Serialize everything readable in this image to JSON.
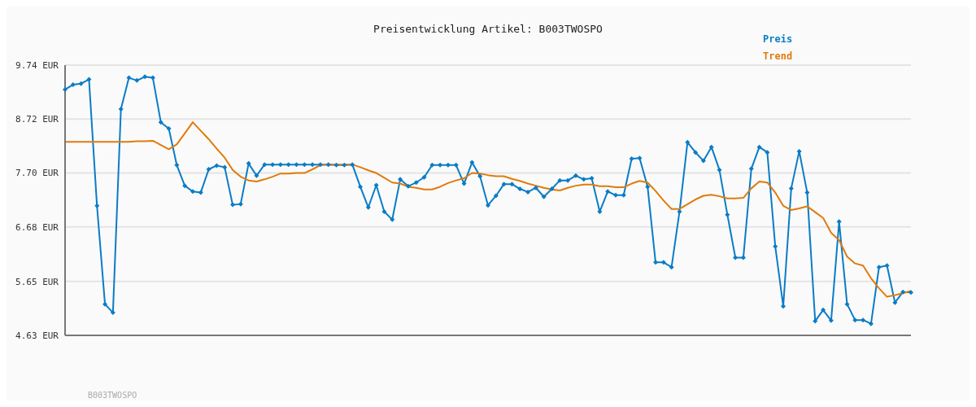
{
  "chart_data": {
    "type": "line",
    "title": "Preisentwicklung Artikel: B003TWOSPO",
    "categories": [
      null,
      null,
      null,
      null,
      null,
      null,
      null,
      null,
      null,
      null,
      null,
      null,
      null,
      null,
      null,
      null,
      null,
      null,
      null,
      null,
      null,
      null,
      null,
      null,
      null,
      null,
      null,
      null,
      null,
      null,
      null,
      null,
      null,
      null,
      null,
      null,
      null,
      null,
      null,
      null,
      null,
      null,
      null,
      null,
      null,
      null,
      null,
      null,
      null,
      null,
      null,
      null,
      null,
      null,
      null,
      null,
      null,
      null,
      null,
      null,
      null,
      null,
      null,
      null,
      null,
      null,
      null,
      null,
      null,
      null,
      null,
      null,
      null,
      null,
      null,
      null,
      null,
      null,
      null,
      null,
      null,
      null,
      null,
      null,
      null,
      null,
      null,
      null,
      null,
      null,
      null,
      null,
      null,
      null,
      null,
      null,
      null,
      null,
      null,
      null,
      null,
      null,
      null,
      null,
      null,
      null,
      null
    ],
    "series": [
      {
        "name": "Preis",
        "color": "#0a7cc6",
        "marker": "diamond",
        "values": [
          9.28,
          9.37,
          9.39,
          9.47,
          7.08,
          5.22,
          5.06,
          8.91,
          9.5,
          9.45,
          9.52,
          9.5,
          8.66,
          8.54,
          7.85,
          7.46,
          7.35,
          7.33,
          7.77,
          7.84,
          7.81,
          7.1,
          7.11,
          7.88,
          7.65,
          7.86,
          7.86,
          7.86,
          7.86,
          7.86,
          7.86,
          7.86,
          7.86,
          7.86,
          7.85,
          7.85,
          7.86,
          7.44,
          7.05,
          7.47,
          6.97,
          6.82,
          7.58,
          7.45,
          7.52,
          7.62,
          7.85,
          7.85,
          7.85,
          7.85,
          7.5,
          7.9,
          7.64,
          7.09,
          7.27,
          7.49,
          7.49,
          7.4,
          7.34,
          7.42,
          7.25,
          7.4,
          7.56,
          7.56,
          7.65,
          7.58,
          7.6,
          6.97,
          7.35,
          7.28,
          7.28,
          7.97,
          7.98,
          7.44,
          6.01,
          6.01,
          5.92,
          6.97,
          8.28,
          8.09,
          7.93,
          8.19,
          7.76,
          6.91,
          6.1,
          6.1,
          7.78,
          8.19,
          8.09,
          6.31,
          5.18,
          7.41,
          8.11,
          7.33,
          4.9,
          5.11,
          4.91,
          6.78,
          5.22,
          4.92,
          4.92,
          4.85,
          5.92,
          5.95,
          5.25,
          5.45,
          5.44
        ]
      },
      {
        "name": "Trend",
        "color": "#e07b0c",
        "marker": "none",
        "values": [
          8.29,
          8.29,
          8.29,
          8.29,
          8.29,
          8.29,
          8.29,
          8.29,
          8.29,
          8.3,
          8.3,
          8.31,
          8.23,
          8.15,
          8.24,
          8.45,
          8.66,
          8.5,
          8.34,
          8.16,
          7.99,
          7.76,
          7.63,
          7.56,
          7.54,
          7.58,
          7.63,
          7.69,
          7.69,
          7.7,
          7.7,
          7.77,
          7.85,
          7.86,
          7.86,
          7.86,
          7.86,
          7.81,
          7.75,
          7.7,
          7.61,
          7.52,
          7.5,
          7.44,
          7.42,
          7.39,
          7.39,
          7.44,
          7.51,
          7.56,
          7.6,
          7.7,
          7.69,
          7.66,
          7.64,
          7.64,
          7.59,
          7.55,
          7.5,
          7.46,
          7.42,
          7.39,
          7.37,
          7.42,
          7.46,
          7.48,
          7.48,
          7.45,
          7.45,
          7.43,
          7.43,
          7.5,
          7.55,
          7.52,
          7.36,
          7.18,
          7.02,
          7.02,
          7.11,
          7.2,
          7.27,
          7.29,
          7.26,
          7.22,
          7.22,
          7.23,
          7.41,
          7.54,
          7.52,
          7.33,
          7.08,
          7.0,
          7.03,
          7.07,
          6.96,
          6.85,
          6.57,
          6.43,
          6.12,
          5.99,
          5.95,
          5.71,
          5.52,
          5.36,
          5.39,
          5.43,
          5.47
        ]
      }
    ],
    "ylim": [
      4.63,
      9.74
    ],
    "yticks": [
      {
        "value": 4.63,
        "label": "4.63 EUR"
      },
      {
        "value": 5.65,
        "label": "5.65 EUR"
      },
      {
        "value": 6.68,
        "label": "6.68 EUR"
      },
      {
        "value": 7.7,
        "label": "7.70 EUR"
      },
      {
        "value": 8.72,
        "label": "8.72 EUR"
      },
      {
        "value": 9.74,
        "label": "9.74 EUR"
      }
    ],
    "grid": "y",
    "legend": "top right",
    "tick_labels": "y",
    "line_style": "solid",
    "annotations": [
      "B003TWOSPO"
    ]
  }
}
